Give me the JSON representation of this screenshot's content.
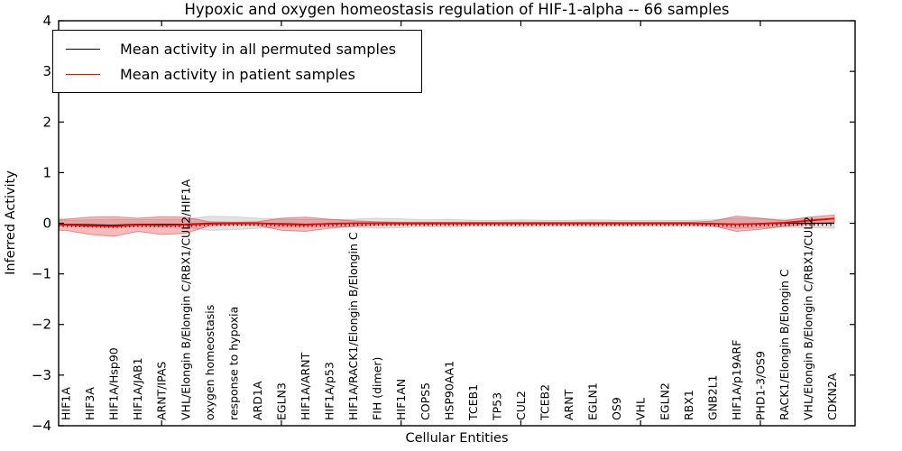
{
  "figure": {
    "title": "Hypoxic and oxygen homeostasis regulation of HIF-1-alpha -- 66 samples",
    "xlabel": "Cellular Entities",
    "ylabel": "Inferred Activity",
    "legend": [
      {
        "label": "Mean activity in all permuted samples",
        "color": "#000000"
      },
      {
        "label": "Mean activity in patient samples",
        "color": "#ff0000"
      }
    ]
  },
  "chart_data": {
    "type": "line",
    "title": "Hypoxic and oxygen homeostasis regulation of HIF-1-alpha -- 66 samples",
    "xlabel": "Cellular Entities",
    "ylabel": "Inferred Activity",
    "ylim": [
      -4,
      4
    ],
    "yticks": [
      4,
      3,
      2,
      1,
      0,
      -1,
      -2,
      -3,
      -4
    ],
    "ytick_labels": [
      "4",
      "3",
      "2",
      "1",
      "0",
      "−1",
      "−2",
      "−3",
      "−4"
    ],
    "grid": false,
    "legend_position": "upper left",
    "categories": [
      "HIF1A",
      "HIF3A",
      "HIF1A/Hsp90",
      "HIF1A/JAB1",
      "ARNT/IPAS",
      "VHL/Elongin B/Elongin C/RBX1/CUL2/HIF1A",
      "oxygen homeostasis",
      "response to hypoxia",
      "ARD1A",
      "EGLN3",
      "HIF1A/ARNT",
      "HIF1A/p53",
      "HIF1A/RACK1/Elongin B/Elongin C",
      "FIH (dimer)",
      "HIF1AN",
      "COPS5",
      "HSP90AA1",
      "TCEB1",
      "TP53",
      "CUL2",
      "TCEB2",
      "ARNT",
      "EGLN1",
      "OS9",
      "VHL",
      "EGLN2",
      "RBX1",
      "GNB2L1",
      "HIF1A/p19ARF",
      "PHD1-3/OS9",
      "RACK1/Elongin B/Elongin C",
      "VHL/Elongin B/Elongin C/RBX1/CUL2",
      "CDKN2A"
    ],
    "series": [
      {
        "name": "Mean activity in all permuted samples",
        "color": "#000000",
        "values": [
          -0.02,
          -0.03,
          -0.04,
          -0.02,
          -0.02,
          -0.02,
          0,
          0,
          0,
          -0.01,
          -0.02,
          -0.01,
          0,
          0,
          0,
          0,
          0,
          0,
          0,
          0,
          0,
          0,
          0,
          0,
          0,
          0,
          0,
          -0.01,
          -0.02,
          -0.01,
          0,
          0,
          0
        ]
      },
      {
        "name": "Mean activity in patient samples",
        "color": "#ff0000",
        "values": [
          -0.03,
          -0.05,
          -0.06,
          -0.03,
          -0.04,
          -0.03,
          -0.01,
          0,
          0,
          -0.02,
          -0.03,
          -0.01,
          0,
          0,
          0,
          0,
          0,
          0,
          0,
          0,
          0,
          0,
          0,
          0,
          0,
          0,
          0,
          -0.01,
          -0.02,
          -0.01,
          0.01,
          0.05,
          0.09
        ]
      }
    ],
    "bands": [
      {
        "name": "permuted-samples-band",
        "fill": "rgba(125,125,125,0.22)",
        "edge": "rgba(0,0,0,0.12)",
        "upper": [
          0.06,
          0.07,
          0.08,
          0.07,
          0.08,
          0.08,
          0.14,
          0.13,
          0.1,
          0.08,
          0.08,
          0.07,
          0.08,
          0.1,
          0.09,
          0.07,
          0.08,
          0.06,
          0.06,
          0.07,
          0.06,
          0.06,
          0.07,
          0.06,
          0.06,
          0.06,
          0.06,
          0.07,
          0.1,
          0.09,
          0.08,
          0.09,
          0.1
        ],
        "lower": [
          -0.06,
          -0.07,
          -0.08,
          -0.07,
          -0.08,
          -0.08,
          -0.14,
          -0.13,
          -0.1,
          -0.08,
          -0.08,
          -0.07,
          -0.08,
          -0.1,
          -0.09,
          -0.07,
          -0.08,
          -0.06,
          -0.06,
          -0.07,
          -0.06,
          -0.06,
          -0.07,
          -0.06,
          -0.06,
          -0.06,
          -0.06,
          -0.07,
          -0.1,
          -0.09,
          -0.08,
          -0.09,
          -0.1
        ]
      },
      {
        "name": "patient-samples-band",
        "fill": "rgba(229,30,30,0.30)",
        "edge": "rgba(210,35,35,0.45)",
        "upper": [
          0.08,
          0.12,
          0.13,
          0.1,
          0.13,
          0.12,
          0.03,
          0.02,
          0.03,
          0.1,
          0.12,
          0.08,
          0.05,
          0.03,
          0.02,
          0.02,
          0.02,
          0.02,
          0.02,
          0.02,
          0.02,
          0.02,
          0.02,
          0.02,
          0.02,
          0.02,
          0.02,
          0.04,
          0.14,
          0.1,
          0.05,
          0.12,
          0.16
        ],
        "lower": [
          -0.14,
          -0.22,
          -0.26,
          -0.16,
          -0.22,
          -0.2,
          -0.05,
          -0.03,
          -0.04,
          -0.14,
          -0.16,
          -0.1,
          -0.06,
          -0.04,
          -0.03,
          -0.03,
          -0.03,
          -0.03,
          -0.03,
          -0.03,
          -0.03,
          -0.03,
          -0.03,
          -0.03,
          -0.03,
          -0.03,
          -0.03,
          -0.05,
          -0.16,
          -0.12,
          -0.06,
          -0.02,
          0.02
        ]
      }
    ]
  }
}
